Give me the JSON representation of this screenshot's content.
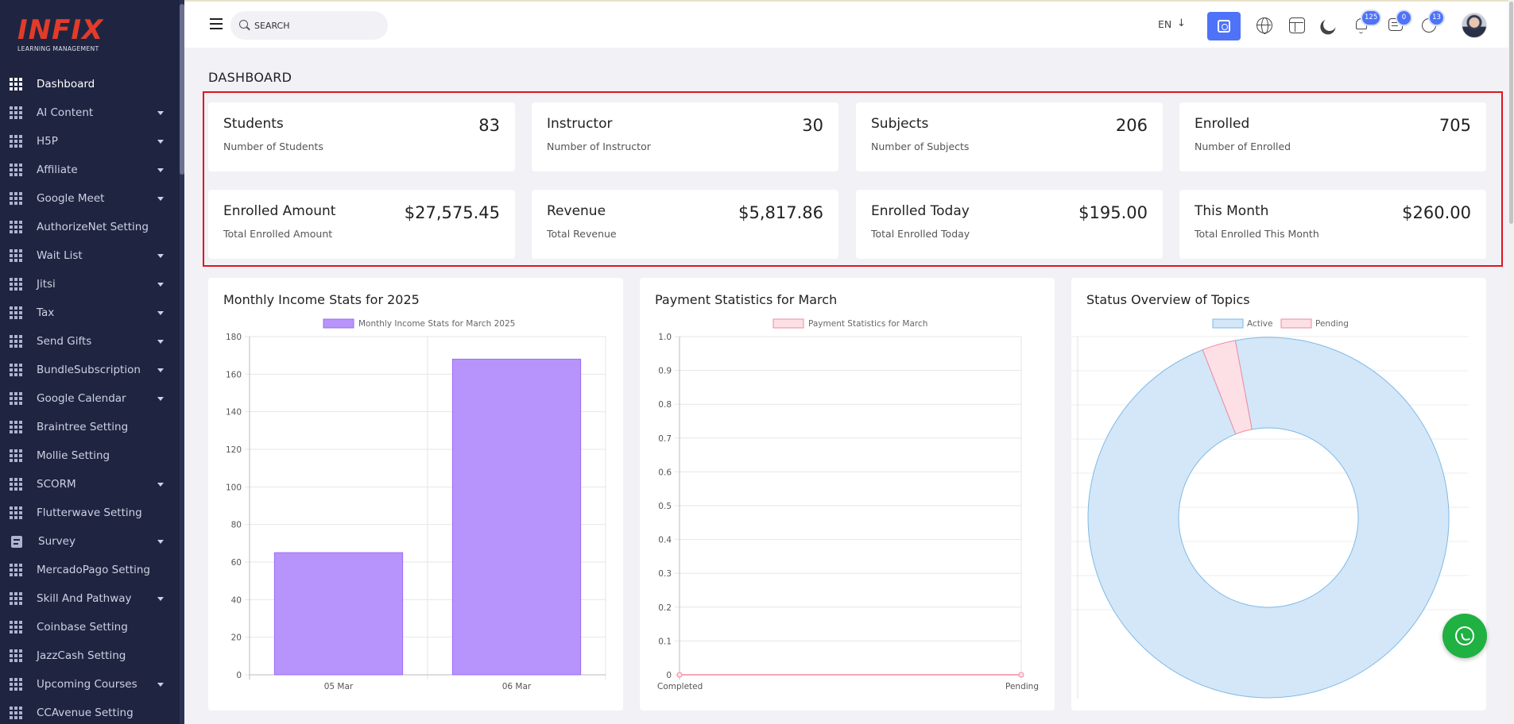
{
  "brand": {
    "name": "INFIX",
    "subtitle": "LEARNING MANAGEMENT"
  },
  "sidebar": {
    "items": [
      {
        "label": "Dashboard",
        "has_caret": false,
        "icon": "grid-icon",
        "active": true
      },
      {
        "label": "AI Content",
        "has_caret": true,
        "icon": "grid-icon"
      },
      {
        "label": "H5P",
        "has_caret": true,
        "icon": "grid-icon"
      },
      {
        "label": "Affiliate",
        "has_caret": true,
        "icon": "grid-icon"
      },
      {
        "label": "Google Meet",
        "has_caret": true,
        "icon": "grid-icon"
      },
      {
        "label": "AuthorizeNet Setting",
        "has_caret": false,
        "icon": "grid-icon"
      },
      {
        "label": "Wait List",
        "has_caret": true,
        "icon": "grid-icon"
      },
      {
        "label": "Jitsi",
        "has_caret": true,
        "icon": "grid-icon"
      },
      {
        "label": "Tax",
        "has_caret": true,
        "icon": "grid-icon"
      },
      {
        "label": "Send Gifts",
        "has_caret": true,
        "icon": "grid-icon"
      },
      {
        "label": "BundleSubscription",
        "has_caret": true,
        "icon": "grid-icon"
      },
      {
        "label": "Google Calendar",
        "has_caret": true,
        "icon": "grid-icon"
      },
      {
        "label": "Braintree Setting",
        "has_caret": false,
        "icon": "grid-icon"
      },
      {
        "label": "Mollie Setting",
        "has_caret": false,
        "icon": "grid-icon"
      },
      {
        "label": "SCORM",
        "has_caret": true,
        "icon": "grid-icon"
      },
      {
        "label": "Flutterwave Setting",
        "has_caret": false,
        "icon": "grid-icon"
      },
      {
        "label": "Survey",
        "has_caret": true,
        "icon": "document-icon"
      },
      {
        "label": "MercadoPago Setting",
        "has_caret": false,
        "icon": "grid-icon"
      },
      {
        "label": "Skill And Pathway",
        "has_caret": true,
        "icon": "grid-icon"
      },
      {
        "label": "Coinbase Setting",
        "has_caret": false,
        "icon": "grid-icon"
      },
      {
        "label": "JazzCash Setting",
        "has_caret": false,
        "icon": "grid-icon"
      },
      {
        "label": "Upcoming Courses",
        "has_caret": true,
        "icon": "grid-icon"
      },
      {
        "label": "CCAvenue Setting",
        "has_caret": false,
        "icon": "grid-icon"
      }
    ]
  },
  "topbar": {
    "search": {
      "placeholder": "SEARCH",
      "value": ""
    },
    "language": "EN",
    "notifications": {
      "bell": "125",
      "messages": "0",
      "whatsapp": "13"
    }
  },
  "page": {
    "title": "DASHBOARD"
  },
  "stats": [
    {
      "title": "Students",
      "subtitle": "Number of Students",
      "value": "83"
    },
    {
      "title": "Instructor",
      "subtitle": "Number of Instructor",
      "value": "30"
    },
    {
      "title": "Subjects",
      "subtitle": "Number of Subjects",
      "value": "206"
    },
    {
      "title": "Enrolled",
      "subtitle": "Number of Enrolled",
      "value": "705"
    },
    {
      "title": "Enrolled Amount",
      "subtitle": "Total Enrolled Amount",
      "value": "$27,575.45"
    },
    {
      "title": "Revenue",
      "subtitle": "Total Revenue",
      "value": "$5,817.86"
    },
    {
      "title": "Enrolled Today",
      "subtitle": "Total Enrolled Today",
      "value": "$195.00"
    },
    {
      "title": "This Month",
      "subtitle": "Total Enrolled This Month",
      "value": "$260.00"
    }
  ],
  "panels": {
    "income": "Monthly Income Stats for 2025",
    "payment": "Payment Statistics for March",
    "topics": "Status Overview of Topics"
  },
  "colors": {
    "accent": "#4e73f8",
    "sidebar": "#1f2541",
    "highlight": "#e0151f",
    "bar": "#b794fb",
    "active": "#d3e7f8",
    "pending": "#fde0e6",
    "whatsapp": "#1fb141"
  },
  "chart_data": [
    {
      "type": "bar",
      "legend": [
        "Monthly Income Stats for March 2025"
      ],
      "categories": [
        "05 Mar",
        "06 Mar"
      ],
      "series": [
        {
          "name": "Monthly Income Stats for March 2025",
          "values": [
            65,
            168
          ]
        }
      ],
      "ylim": [
        0,
        180
      ],
      "yticks": [
        0,
        20,
        40,
        60,
        80,
        100,
        120,
        140,
        160,
        180
      ],
      "grid": true,
      "legend_position": "top"
    },
    {
      "type": "line",
      "legend": [
        "Payment Statistics for March"
      ],
      "categories": [
        "Completed",
        "Pending"
      ],
      "series": [
        {
          "name": "Payment Statistics for March",
          "values": [
            0,
            0
          ]
        }
      ],
      "ylim": [
        0,
        1
      ],
      "yticks": [
        "0",
        "0.1",
        "0.2",
        "0.3",
        "0.4",
        "0.5",
        "0.6",
        "0.7",
        "0.8",
        "0.9",
        "1.0"
      ],
      "grid": true,
      "legend_position": "top"
    },
    {
      "type": "pie",
      "legend": [
        "Active",
        "Pending"
      ],
      "labels": [
        "Active",
        "Pending"
      ],
      "values": [
        97,
        3
      ],
      "donut": true,
      "legend_position": "top"
    }
  ]
}
